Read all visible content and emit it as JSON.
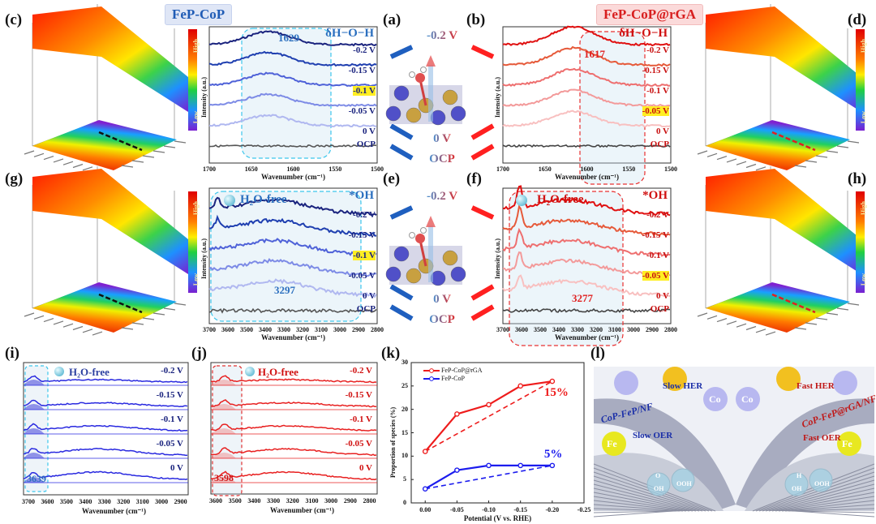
{
  "headers": {
    "left": "FeP-CoP",
    "right": "FeP-CoP@rGA"
  },
  "panel_labels": {
    "a": "(a)",
    "b": "(b)",
    "c": "(c)",
    "d": "(d)",
    "e": "(e)",
    "f": "(f)",
    "g": "(g)",
    "h": "(h)",
    "i": "(i)",
    "j": "(j)",
    "k": "(k)",
    "l": "(l)"
  },
  "colorbar": {
    "high": "High",
    "low": "Low"
  },
  "spectra": {
    "a_left": {
      "xlabel": "Wavenumber (cm⁻¹)",
      "ylabel": "Intensity (a.u.)",
      "ticks": [
        "1700",
        "1650",
        "1600",
        "1550",
        "1500"
      ],
      "peak": "1629",
      "species": "δH−O−H",
      "labels": [
        {
          "t": "-0.2 V",
          "h": false
        },
        {
          "t": "-0.15 V",
          "h": false
        },
        {
          "t": "-0.1 V",
          "h": true
        },
        {
          "t": "-0.05 V",
          "h": false
        },
        {
          "t": "0 V",
          "h": false
        },
        {
          "t": "OCP",
          "h": false
        }
      ],
      "colors": [
        "#1a237e",
        "#1f3fb0",
        "#4f62d8",
        "#7d8be6",
        "#b0b8f0",
        "#555555"
      ]
    },
    "b_right": {
      "xlabel": "Wavenumber (cm⁻¹)",
      "ylabel": "Intensity (a.u.)",
      "ticks": [
        "1700",
        "1650",
        "1600",
        "1550",
        "1500"
      ],
      "peak": "1617",
      "species": "δH−O−H",
      "labels": [
        {
          "t": "-0.2 V",
          "h": false
        },
        {
          "t": "-0.15 V",
          "h": false
        },
        {
          "t": "-0.1 V",
          "h": false
        },
        {
          "t": "-0.05 V",
          "h": true
        },
        {
          "t": "0 V",
          "h": false
        },
        {
          "t": "OCP",
          "h": false
        }
      ],
      "colors": [
        "#e01010",
        "#e65a3a",
        "#ee6f6f",
        "#f39a9a",
        "#f8c0c0",
        "#444444"
      ]
    },
    "e_left": {
      "xlabel": "Wavenumber (cm⁻¹)",
      "ylabel": "Intensity (a.u.)",
      "ticks": [
        "3700",
        "3600",
        "3500",
        "3400",
        "3300",
        "3200",
        "3100",
        "3000",
        "2900",
        "2800"
      ],
      "peak": "3297",
      "species": "*OH",
      "free": "H₂O-free",
      "labels": [
        {
          "t": "-0.2 V",
          "h": false
        },
        {
          "t": "-0.15 V",
          "h": false
        },
        {
          "t": "-0.1 V",
          "h": true
        },
        {
          "t": "-0.05 V",
          "h": false
        },
        {
          "t": "0 V",
          "h": false
        },
        {
          "t": "OCP",
          "h": false
        }
      ],
      "colors": [
        "#1a237e",
        "#1f3fb0",
        "#4f62d8",
        "#7d8be6",
        "#b0b8f0",
        "#555555"
      ]
    },
    "f_right": {
      "xlabel": "Wavenumber (cm⁻¹)",
      "ylabel": "Intensity (a.u.)",
      "ticks": [
        "3700",
        "3600",
        "3500",
        "3400",
        "3300",
        "3200",
        "3100",
        "3000",
        "2900",
        "2800"
      ],
      "peak": "3277",
      "species": "*OH",
      "free": "H₂O-free",
      "labels": [
        {
          "t": "-0.2 V",
          "h": false
        },
        {
          "t": "-0.15 V",
          "h": false
        },
        {
          "t": "-0.1 V",
          "h": false
        },
        {
          "t": "-0.05 V",
          "h": true
        },
        {
          "t": "0 V",
          "h": false
        },
        {
          "t": "OCP",
          "h": false
        }
      ],
      "colors": [
        "#e01010",
        "#e65a3a",
        "#ee6f6f",
        "#f39a9a",
        "#f8c0c0",
        "#444444"
      ]
    },
    "i": {
      "xlabel": "Wavenumber (cm⁻¹)",
      "ticks": [
        "3700",
        "3600",
        "3500",
        "3400",
        "3300",
        "3200",
        "3100",
        "3000",
        "2900"
      ],
      "peak": "3639",
      "free": "H₂O-free",
      "labels": [
        "-0.2 V",
        "-0.15 V",
        "-0.1 V",
        "-0.05 V",
        "0 V"
      ],
      "color": "#2a2ae0"
    },
    "j": {
      "xlabel": "Wavenumber (cm⁻¹)",
      "ticks": [
        "3600",
        "3500",
        "3400",
        "3300",
        "3200",
        "3100",
        "3000",
        "2900",
        "2800"
      ],
      "peak": "3598",
      "free": "H₂O-free",
      "labels": [
        "-0.2 V",
        "-0.15 V",
        "-0.1 V",
        "-0.05 V",
        "0 V"
      ],
      "color": "#e82020"
    }
  },
  "center": {
    "top": {
      "v1": "-0.2 V",
      "v2": "0 V",
      "v3": "OCP"
    },
    "bottom": {
      "v1": "-0.2 V",
      "v2": "0 V",
      "v3": "OCP"
    }
  },
  "chart_data": {
    "type": "line",
    "xlabel": "Potential (V vs. RHE)",
    "ylabel": "Proportion of species (%)",
    "x": [
      0.0,
      -0.05,
      -0.1,
      -0.15,
      -0.2
    ],
    "xticks": [
      "0.00",
      "-0.05",
      "-0.10",
      "-0.15",
      "-0.20",
      "-0.25"
    ],
    "xtick_values": [
      0.0,
      -0.05,
      -0.1,
      -0.15,
      -0.2,
      -0.25
    ],
    "yticks": [
      "0",
      "5",
      "10",
      "15",
      "20",
      "25",
      "30"
    ],
    "ytick_values": [
      0,
      5,
      10,
      15,
      20,
      25,
      30
    ],
    "xlim": [
      0.022,
      -0.25
    ],
    "ylim": [
      0,
      30
    ],
    "legend_position": "top-left",
    "series": [
      {
        "name": "FeP-CoP@rGA",
        "values": [
          11,
          19,
          21,
          25,
          26
        ],
        "color": "#ee1c1c",
        "annotation": "15%"
      },
      {
        "name": "FeP-CoP",
        "values": [
          3,
          7,
          8,
          8,
          8
        ],
        "color": "#1c1cee",
        "annotation": "5%"
      }
    ]
  },
  "illustration": {
    "slow_her": "Slow HER",
    "slow_oer": "Slow OER",
    "fast_her": "Fast HER",
    "fast_oer": "Fast OER",
    "left_material": "CoP-FeP/NF",
    "right_material": "CoP-FeP@rGA/NF",
    "co": "Co",
    "fe": "Fe",
    "oh": "OH",
    "ooh": "OOH",
    "o": "O",
    "h": "H"
  }
}
